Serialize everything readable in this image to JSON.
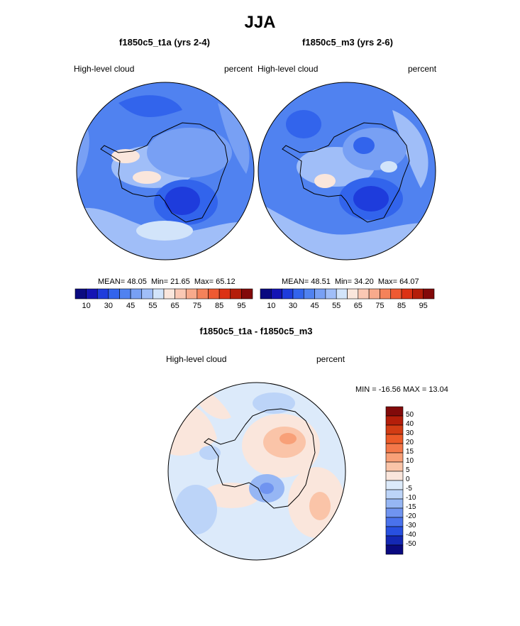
{
  "main_title": "JJA",
  "panels": [
    {
      "title": "f1850c5_t1a (yrs 2-4)",
      "variable": "High-level cloud",
      "units": "percent",
      "stats": {
        "mean_label": "MEAN=",
        "mean": "48.05",
        "min_label": "Min=",
        "min": "21.65",
        "max_label": "Max=",
        "max": "65.12"
      }
    },
    {
      "title": "f1850c5_m3 (yrs 2-6)",
      "variable": "High-level cloud",
      "units": "percent",
      "stats": {
        "mean_label": "MEAN=",
        "mean": "48.51",
        "min_label": "Min=",
        "min": "34.20",
        "max_label": "Max=",
        "max": "64.07"
      }
    }
  ],
  "diff_panel": {
    "title": "f1850c5_t1a - f1850c5_m3",
    "variable": "High-level cloud",
    "units": "percent",
    "minmax": "MIN = -16.56 MAX =  13.04"
  },
  "colorbar_h": {
    "colors": [
      "#0a0a80",
      "#1414b4",
      "#1e3cdc",
      "#3264ec",
      "#5082f0",
      "#78a0f4",
      "#a0bef8",
      "#d2e4fa",
      "#fae6dc",
      "#fac8b4",
      "#f8aa8c",
      "#f4825a",
      "#ee5a32",
      "#dc3214",
      "#b41e0a",
      "#820a0a"
    ],
    "ticks": [
      "10",
      "30",
      "45",
      "55",
      "65",
      "75",
      "85",
      "95"
    ]
  },
  "colorbar_v": {
    "colors": [
      "#820a0a",
      "#b41e0a",
      "#d23c14",
      "#ec5a28",
      "#f4784a",
      "#f8a078",
      "#fac4a8",
      "#fae6dc",
      "#dceafa",
      "#bcd4f8",
      "#96b6f4",
      "#7094f0",
      "#4a72ec",
      "#2850e0",
      "#1428b4",
      "#0a0a80"
    ],
    "ticks": [
      "50",
      "40",
      "30",
      "20",
      "15",
      "10",
      "5",
      "0",
      "-5",
      "-10",
      "-15",
      "-20",
      "-30",
      "-40",
      "-50"
    ]
  },
  "map_colors": {
    "deep": "#1e3cdc",
    "dark": "#3264ec",
    "mid": "#5082f0",
    "light": "#78a0f4",
    "pale": "#a0bef8",
    "faint": "#d2e4fa",
    "warm": "#fae6dc",
    "warm2": "#fac8b4",
    "diff_neutral": "#dceafa",
    "diff_pos": "#fae6dc",
    "diff_pos2": "#fac4a8",
    "diff_pos3": "#f8a078",
    "diff_neg": "#bcd4f8",
    "diff_neg2": "#96b6f4",
    "diff_neg3": "#7094f0"
  }
}
